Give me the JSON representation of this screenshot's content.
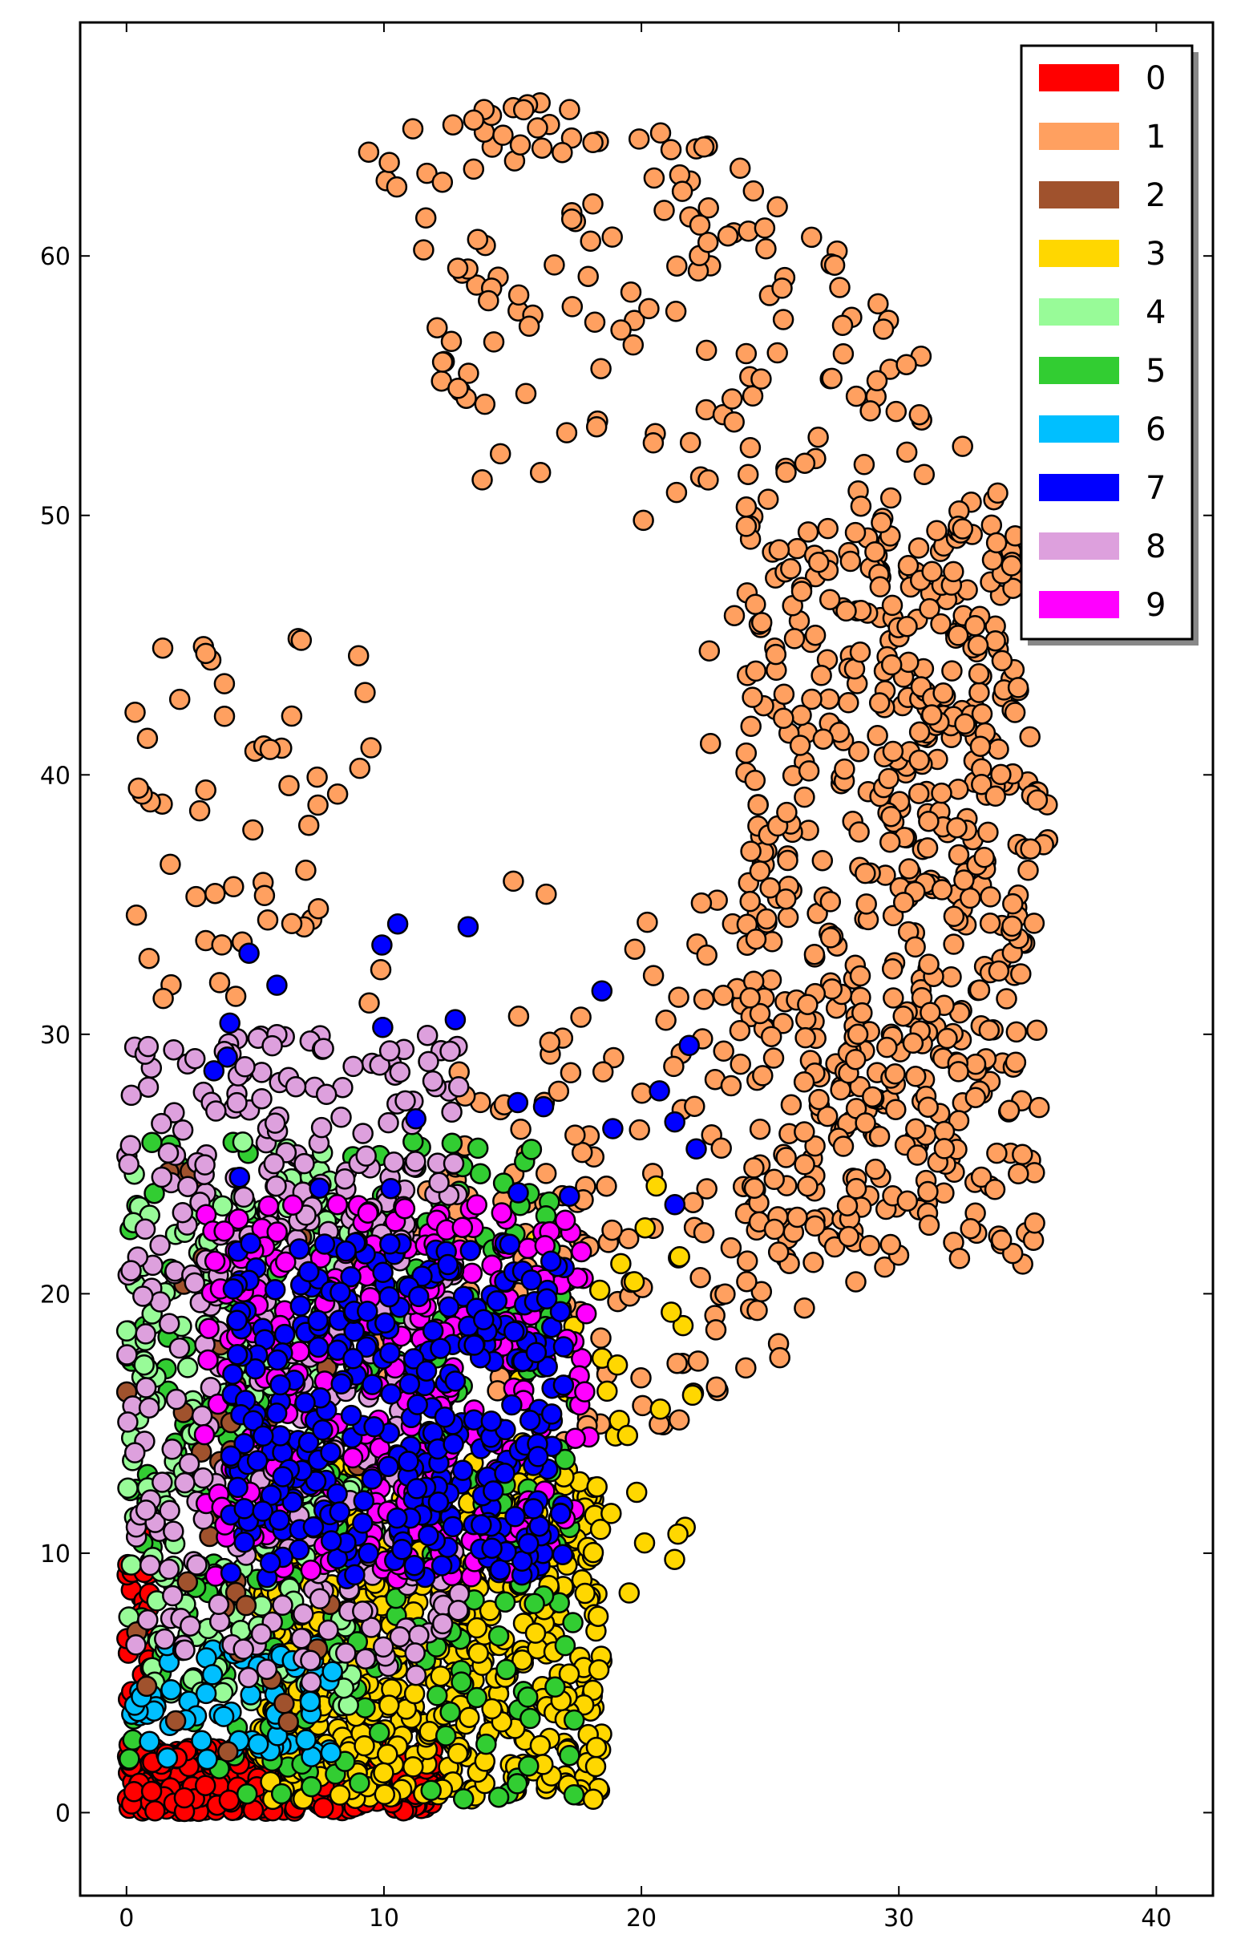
{
  "chart_data": {
    "type": "scatter",
    "title": "",
    "xlabel": "",
    "ylabel": "",
    "xlim": [
      -1.8,
      42.2
    ],
    "ylim": [
      -3.2,
      69.0
    ],
    "x_ticks": [
      0,
      10,
      20,
      30,
      40
    ],
    "y_ticks": [
      0,
      10,
      20,
      30,
      40,
      50,
      60
    ],
    "grid": false,
    "legend_position": "top-right",
    "series": [
      {
        "name": "0",
        "color": "#ff0000"
      },
      {
        "name": "1",
        "color": "#ffa060"
      },
      {
        "name": "2",
        "color": "#a0522d"
      },
      {
        "name": "3",
        "color": "#ffd700"
      },
      {
        "name": "4",
        "color": "#98fb98"
      },
      {
        "name": "5",
        "color": "#32cd32"
      },
      {
        "name": "6",
        "color": "#00bfff"
      },
      {
        "name": "7",
        "color": "#0000ff"
      },
      {
        "name": "8",
        "color": "#dda0dd"
      },
      {
        "name": "9",
        "color": "#ff00ff"
      }
    ],
    "clusters": [
      {
        "series": "1",
        "shape": "annulus",
        "cx": 15.5,
        "cy": 40,
        "rx0": 7,
        "rx1": 20.5,
        "ry0": 9,
        "ry1": 26,
        "a0": -1.9,
        "a1": 1.9,
        "n": 520
      },
      {
        "series": "1",
        "shape": "rect",
        "x0": 24,
        "x1": 35.5,
        "y0": 21,
        "y1": 50,
        "n": 420
      },
      {
        "series": "1",
        "shape": "rect",
        "x0": 0,
        "x1": 10,
        "y0": 31,
        "y1": 46,
        "n": 55
      },
      {
        "series": "1",
        "shape": "rect",
        "x0": 14,
        "x1": 24,
        "y0": 21,
        "y1": 36,
        "n": 30
      },
      {
        "series": "0",
        "shape": "rect",
        "x0": 0,
        "x1": 12,
        "y0": 0,
        "y1": 2.5,
        "n": 520
      },
      {
        "series": "0",
        "shape": "rect",
        "x0": 0,
        "x1": 1,
        "y0": 2,
        "y1": 11.5,
        "n": 35
      },
      {
        "series": "3",
        "shape": "rect",
        "x0": 5,
        "x1": 18.5,
        "y0": 0.5,
        "y1": 13.5,
        "n": 650
      },
      {
        "series": "3",
        "shape": "rect",
        "x0": 15,
        "x1": 22,
        "y0": 7,
        "y1": 24.5,
        "n": 45
      },
      {
        "series": "5",
        "shape": "rect",
        "x0": 0,
        "x1": 17.5,
        "y0": 0.5,
        "y1": 26,
        "n": 320
      },
      {
        "series": "4",
        "shape": "rect",
        "x0": 0,
        "x1": 9,
        "y0": 4,
        "y1": 26,
        "n": 230
      },
      {
        "series": "6",
        "shape": "rect",
        "x0": 0,
        "x1": 8,
        "y0": 2,
        "y1": 6.5,
        "n": 70
      },
      {
        "series": "2",
        "shape": "rect",
        "x0": 0,
        "x1": 9,
        "y0": 2,
        "y1": 25,
        "n": 45
      },
      {
        "series": "8",
        "shape": "rect",
        "x0": 0,
        "x1": 13,
        "y0": 5,
        "y1": 30,
        "n": 420
      },
      {
        "series": "9",
        "shape": "rect",
        "x0": 3,
        "x1": 18,
        "y0": 9,
        "y1": 23.5,
        "n": 300
      },
      {
        "series": "7",
        "shape": "rect",
        "x0": 4,
        "x1": 17,
        "y0": 9,
        "y1": 22,
        "n": 360
      },
      {
        "series": "7",
        "shape": "rect",
        "x0": 2,
        "x1": 23,
        "y0": 23,
        "y1": 34.5,
        "n": 25
      }
    ]
  }
}
